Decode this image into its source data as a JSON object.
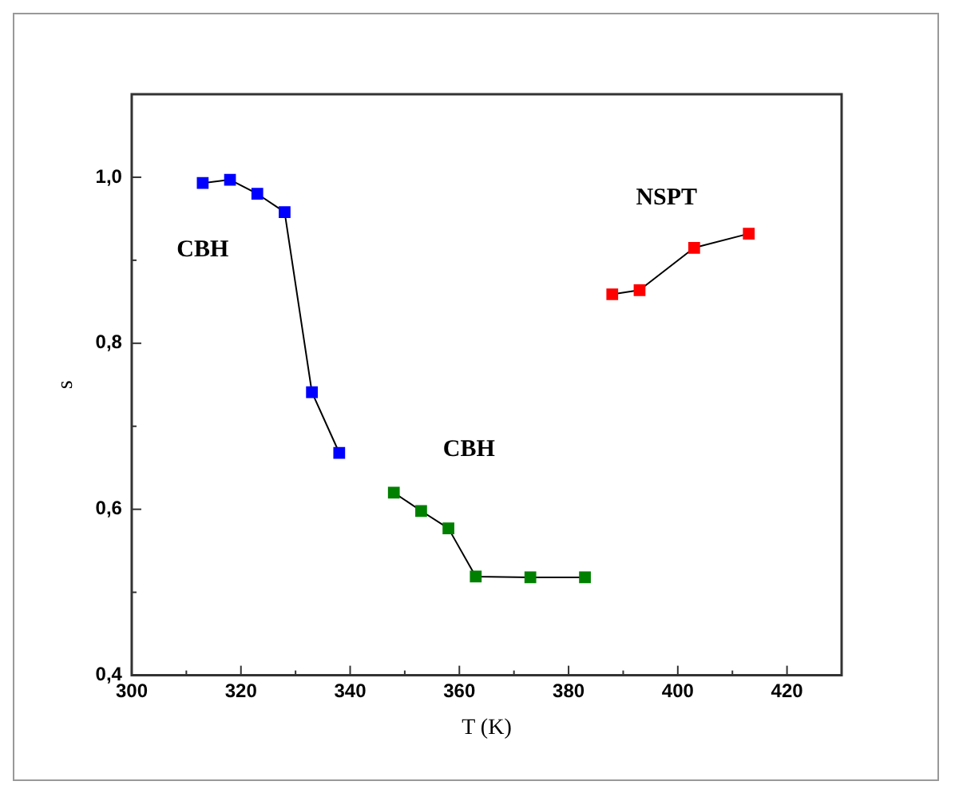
{
  "chart_data": {
    "type": "line",
    "xlabel": "T (K)",
    "ylabel": "s",
    "xlim": [
      300,
      430
    ],
    "xticks": [
      300,
      320,
      340,
      360,
      380,
      400,
      420
    ],
    "ylim": [
      0.4,
      1.1
    ],
    "yticks": [
      {
        "value": 0.4,
        "label": "0,4"
      },
      {
        "value": 0.6,
        "label": "0,6"
      },
      {
        "value": 0.8,
        "label": "0,8"
      },
      {
        "value": 1.0,
        "label": "1,0"
      }
    ],
    "grid": false,
    "legend": false,
    "marker": "square",
    "line_style": "solid",
    "series": [
      {
        "name": "CBH",
        "color": "#0000ff",
        "x": [
          313,
          318,
          323,
          328,
          333,
          338
        ],
        "values": [
          0.993,
          0.997,
          0.98,
          0.958,
          0.741,
          0.668
        ]
      },
      {
        "name": "CBH",
        "color": "#008000",
        "x": [
          348,
          353,
          358,
          363,
          373,
          383
        ],
        "values": [
          0.62,
          0.598,
          0.577,
          0.519,
          0.518,
          0.518
        ]
      },
      {
        "name": "NSPT",
        "color": "#ff0000",
        "x": [
          388,
          393,
          403,
          413
        ],
        "values": [
          0.859,
          0.864,
          0.915,
          0.932
        ]
      }
    ]
  }
}
